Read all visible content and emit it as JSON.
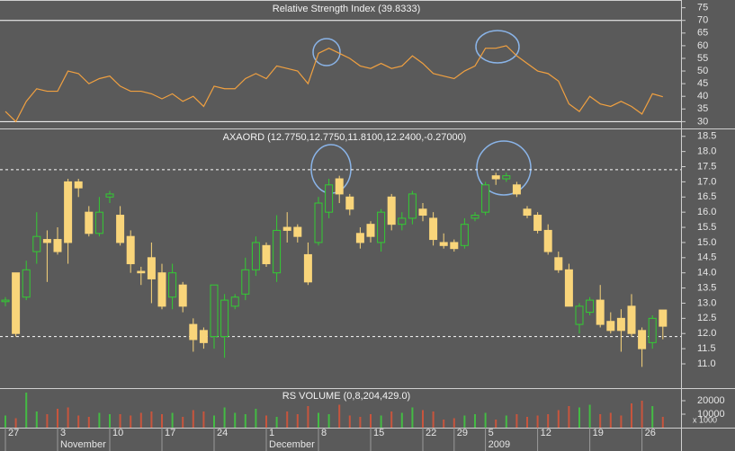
{
  "chart_data": [
    {
      "type": "line",
      "title": "Relative Strength Index (39.8333)",
      "color": "#f0a040",
      "values": [
        34,
        30,
        38,
        43,
        42,
        42,
        50,
        49,
        45,
        47,
        48,
        44,
        42,
        42,
        41,
        39,
        41,
        38,
        40,
        36,
        44,
        43,
        43,
        47,
        49,
        47,
        52,
        51,
        50,
        45,
        57,
        59,
        57,
        55,
        52,
        51,
        53,
        51,
        52,
        56,
        53,
        49,
        48,
        47,
        50,
        52,
        59,
        59,
        60,
        56,
        53,
        50,
        49,
        46,
        37,
        34,
        40,
        37,
        36,
        38,
        36,
        33,
        41,
        39.8333
      ],
      "ylim": [
        28,
        77
      ],
      "yticks": [
        30,
        35,
        40,
        45,
        50,
        55,
        60,
        65,
        70,
        75
      ],
      "reference_lines": [
        70,
        30
      ],
      "reference_line_style": "solid"
    },
    {
      "type": "candlestick",
      "title": "AXAORD (12.7750,12.7750,11.8100,12.2400,-0.27000)",
      "up_color": "#33cc33",
      "down_color": "#f9d57a",
      "open": [
        13.05,
        14.0,
        13.2,
        14.7,
        15.1,
        15.1,
        17.0,
        17.0,
        16.0,
        15.3,
        16.5,
        15.9,
        15.2,
        14.05,
        14.5,
        14.0,
        13.2,
        13.6,
        12.3,
        12.1,
        11.9,
        11.9,
        12.9,
        13.3,
        14.1,
        14.9,
        14.0,
        15.5,
        15.5,
        14.6,
        15.0,
        16.0,
        17.1,
        16.5,
        15.3,
        15.6,
        15.0,
        16.5,
        15.6,
        15.8,
        16.1,
        15.8,
        15.0,
        15.0,
        14.9,
        15.8,
        16.0,
        17.2,
        17.1,
        16.9,
        16.1,
        15.9,
        15.4,
        14.5,
        14.1,
        12.3,
        12.7,
        13.1,
        12.4,
        12.5,
        12.9,
        12.1,
        11.7,
        12.775
      ],
      "high": [
        13.2,
        14.0,
        14.4,
        16.0,
        15.4,
        15.5,
        17.1,
        17.1,
        16.2,
        16.5,
        16.7,
        16.2,
        15.4,
        14.2,
        15.0,
        14.3,
        14.3,
        13.7,
        12.5,
        12.2,
        13.6,
        13.3,
        13.3,
        14.5,
        15.2,
        15.0,
        15.9,
        16.0,
        15.6,
        15.0,
        16.5,
        17.1,
        17.2,
        16.6,
        15.5,
        15.7,
        16.1,
        16.6,
        16.0,
        16.7,
        16.3,
        16.0,
        15.3,
        15.1,
        15.8,
        16.0,
        17.0,
        17.3,
        17.3,
        17.0,
        16.2,
        16.0,
        15.6,
        14.7,
        14.3,
        13.0,
        13.2,
        13.6,
        12.7,
        12.8,
        13.3,
        12.2,
        12.6,
        12.775
      ],
      "low": [
        12.9,
        11.9,
        13.1,
        14.3,
        13.7,
        14.6,
        14.3,
        16.5,
        15.2,
        15.2,
        16.3,
        14.9,
        14.0,
        13.6,
        13.0,
        12.8,
        12.8,
        12.7,
        11.4,
        11.5,
        11.5,
        11.2,
        12.8,
        13.1,
        13.9,
        14.2,
        13.7,
        15.0,
        15.0,
        13.6,
        14.9,
        15.8,
        16.3,
        15.9,
        14.8,
        15.0,
        14.7,
        15.4,
        15.4,
        15.6,
        15.7,
        14.9,
        14.8,
        14.7,
        14.8,
        15.7,
        15.9,
        16.9,
        17.0,
        16.5,
        15.8,
        15.3,
        14.6,
        14.0,
        12.9,
        12.0,
        12.6,
        12.2,
        12.0,
        11.4,
        11.9,
        10.9,
        11.5,
        11.81
      ],
      "close": [
        13.1,
        12.0,
        14.1,
        15.2,
        15.0,
        14.7,
        15.0,
        16.8,
        15.3,
        16.0,
        16.6,
        15.0,
        14.3,
        14.0,
        13.8,
        12.9,
        14.0,
        12.9,
        11.8,
        11.7,
        13.6,
        13.1,
        13.2,
        14.1,
        15.0,
        14.3,
        15.4,
        15.4,
        15.2,
        13.7,
        16.3,
        16.9,
        16.6,
        16.1,
        15.0,
        15.2,
        16.0,
        15.6,
        15.8,
        16.6,
        15.9,
        15.1,
        14.9,
        14.8,
        15.6,
        15.9,
        16.9,
        17.1,
        17.2,
        16.6,
        15.9,
        15.4,
        14.7,
        14.1,
        12.9,
        12.9,
        13.1,
        12.3,
        12.1,
        12.1,
        12.0,
        11.5,
        12.5,
        12.24
      ],
      "ylim": [
        10.2,
        18.7
      ],
      "yticks": [
        {
          "value": 11,
          "label": "11.0"
        },
        11.5,
        {
          "value": 12,
          "label": "12.0"
        },
        12.5,
        {
          "value": 13,
          "label": "13.0"
        },
        13.5,
        {
          "value": 14,
          "label": "14.0"
        },
        14.5,
        {
          "value": 15,
          "label": "15.0"
        },
        15.5,
        {
          "value": 16,
          "label": "16.0"
        },
        16.5,
        {
          "value": 17,
          "label": "17.0"
        },
        17.5,
        {
          "value": 18,
          "label": "18.0"
        },
        18.5
      ],
      "reference_lines": [
        17.4,
        11.9
      ],
      "reference_line_style": "dashed"
    },
    {
      "type": "bar",
      "title": "RS VOLUME (0,8,204,429.0)",
      "y_unit_label": "x 1000",
      "up_color": "#44bb44",
      "down_color": "#c8553d",
      "values": [
        9000,
        7000,
        26000,
        12000,
        10000,
        14000,
        15000,
        9000,
        8000,
        11000,
        10000,
        10000,
        9000,
        11000,
        12000,
        10000,
        11000,
        8000,
        13000,
        12000,
        9000,
        15000,
        11000,
        10000,
        14000,
        9000,
        8000,
        12000,
        10000,
        16000,
        11000,
        10000,
        17000,
        9000,
        8000,
        10000,
        9000,
        12000,
        11000,
        15000,
        13000,
        12000,
        6000,
        7000,
        9000,
        10000,
        11000,
        6000,
        9000,
        10000,
        8000,
        9000,
        10000,
        13000,
        16000,
        15000,
        17000,
        10000,
        11000,
        9000,
        18000,
        20000,
        16000,
        8000
      ],
      "ylim": [
        0,
        28000
      ],
      "yticks": [
        10000,
        20000
      ],
      "categories": [
        "27",
        null,
        null,
        null,
        null,
        "3",
        null,
        null,
        null,
        null,
        "10",
        null,
        null,
        null,
        null,
        "17",
        null,
        null,
        null,
        null,
        "24",
        null,
        null,
        null,
        null,
        "1",
        null,
        null,
        null,
        null,
        "8",
        null,
        null,
        null,
        null,
        "15",
        null,
        null,
        null,
        null,
        "22",
        null,
        null,
        "29",
        null,
        null,
        "5",
        null,
        null,
        null,
        null,
        "12",
        null,
        null,
        null,
        null,
        "19",
        null,
        null,
        null,
        null,
        "26",
        null,
        null
      ],
      "category_groups": [
        null,
        null,
        null,
        null,
        null,
        "November",
        null,
        null,
        null,
        null,
        null,
        null,
        null,
        null,
        null,
        null,
        null,
        null,
        null,
        null,
        null,
        null,
        null,
        null,
        null,
        "December",
        null,
        null,
        null,
        null,
        null,
        null,
        null,
        null,
        null,
        null,
        null,
        null,
        null,
        null,
        null,
        null,
        null,
        null,
        null,
        null,
        "2009",
        null,
        null,
        null,
        null,
        null,
        null,
        null,
        null,
        null,
        null,
        null,
        null,
        null,
        null,
        null,
        null,
        null
      ]
    }
  ]
}
